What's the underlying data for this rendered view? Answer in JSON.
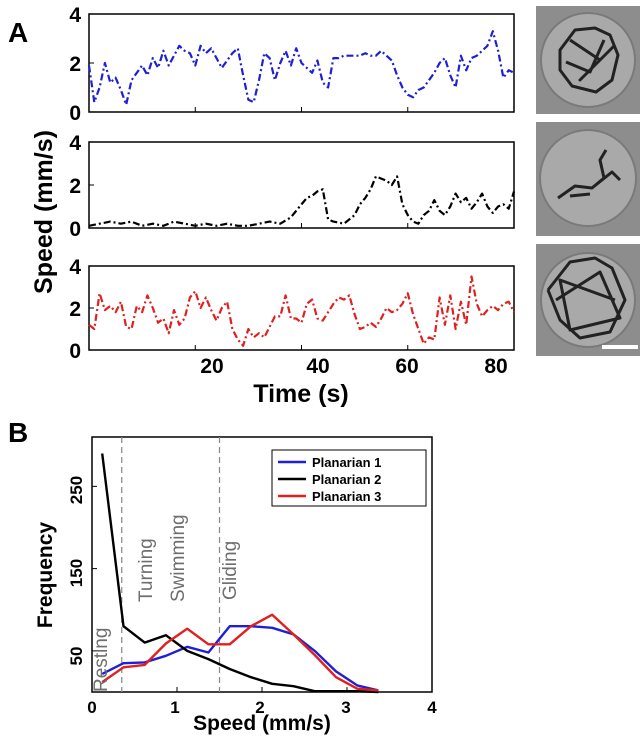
{
  "panel_a": {
    "letter": "A",
    "ylabel": "Speed (mm/s)",
    "xlabel": "Time (s)",
    "xticks": [
      "20",
      "40",
      "60",
      "80"
    ],
    "yticks": [
      "0",
      "2",
      "4"
    ]
  },
  "panel_b": {
    "letter": "B",
    "ylabel": "Frequency",
    "xlabel": "Speed (mm/s)",
    "xticks": [
      "0",
      "1",
      "2",
      "3",
      "4"
    ],
    "yticks": [
      "50",
      "150",
      "250"
    ],
    "regions": [
      "Resting",
      "Turning",
      "Swimming",
      "Gliding"
    ]
  },
  "chart_data": [
    {
      "type": "line",
      "xlabel": "Time (s)",
      "ylabel": "Speed (mm/s)",
      "xlim": [
        0,
        80
      ],
      "ylim": [
        0,
        4
      ],
      "color": "#1f1fd6",
      "x": [
        0,
        1,
        2,
        3,
        4,
        5,
        6,
        7,
        8,
        9,
        10,
        11,
        12,
        13,
        14,
        15,
        16,
        17,
        18,
        19,
        20,
        21,
        22,
        23,
        24,
        25,
        26,
        27,
        28,
        29,
        30,
        31,
        32,
        33,
        34,
        35,
        36,
        37,
        38,
        39,
        40,
        41,
        42,
        43,
        44,
        45,
        46,
        47,
        48,
        49,
        50,
        51,
        52,
        53,
        54,
        55,
        56,
        57,
        58,
        59,
        60,
        61,
        62,
        63,
        64,
        65,
        66,
        67,
        68,
        69,
        70,
        71,
        72,
        73,
        74,
        75,
        76,
        77,
        78,
        79,
        80
      ],
      "values": [
        1.9,
        0.4,
        1.0,
        2.0,
        1.2,
        1.4,
        0.9,
        0.3,
        1.3,
        1.6,
        1.9,
        1.5,
        2.2,
        1.8,
        2.5,
        1.9,
        2.3,
        2.7,
        2.5,
        2.4,
        1.9,
        2.7,
        2.4,
        2.6,
        2.2,
        1.8,
        2.1,
        2.4,
        2.6,
        1.5,
        0.5,
        0.4,
        1.3,
        2.4,
        2.2,
        1.3,
        2.0,
        2.5,
        1.9,
        2.6,
        2.0,
        1.8,
        1.6,
        2.1,
        1.2,
        1.0,
        2.2,
        2.2,
        2.3,
        2.3,
        2.3,
        2.3,
        2.4,
        2.3,
        2.3,
        2.5,
        2.3,
        2.1,
        1.5,
        1.0,
        0.7,
        0.6,
        0.9,
        1.0,
        1.3,
        1.6,
        2.0,
        2.2,
        1.5,
        1.0,
        2.3,
        1.7,
        2.2,
        2.3,
        2.5,
        2.7,
        3.3,
        2.5,
        1.4,
        1.7,
        1.6
      ]
    },
    {
      "type": "line",
      "xlabel": "Time (s)",
      "ylabel": "Speed (mm/s)",
      "xlim": [
        0,
        80
      ],
      "ylim": [
        0,
        4
      ],
      "color": "#000000",
      "x": [
        0,
        2,
        4,
        6,
        8,
        10,
        12,
        14,
        16,
        18,
        20,
        22,
        24,
        26,
        28,
        30,
        32,
        34,
        36,
        38,
        39,
        40,
        41,
        42,
        43,
        44,
        45,
        46,
        48,
        50,
        51,
        52,
        53,
        54,
        55,
        56,
        57,
        58,
        59,
        60,
        61,
        62,
        63,
        64,
        65,
        66,
        67,
        68,
        69,
        70,
        71,
        72,
        73,
        74,
        75,
        76,
        77,
        78,
        79,
        80
      ],
      "values": [
        0.1,
        0.2,
        0.3,
        0.2,
        0.3,
        0.1,
        0.2,
        0.1,
        0.3,
        0.2,
        0.1,
        0.2,
        0.1,
        0.2,
        0.1,
        0.1,
        0.2,
        0.3,
        0.2,
        0.5,
        0.8,
        1.1,
        1.4,
        1.5,
        1.7,
        1.8,
        0.4,
        0.3,
        0.2,
        0.6,
        1.1,
        1.4,
        1.8,
        2.4,
        2.3,
        2.2,
        2.0,
        2.4,
        1.1,
        0.6,
        0.3,
        0.2,
        0.6,
        0.8,
        1.3,
        0.8,
        0.6,
        1.0,
        1.6,
        1.2,
        1.4,
        0.9,
        1.2,
        1.6,
        1.0,
        0.7,
        1.0,
        1.1,
        0.9,
        1.7
      ]
    },
    {
      "type": "line",
      "xlabel": "Time (s)",
      "ylabel": "Speed (mm/s)",
      "xlim": [
        0,
        80
      ],
      "ylim": [
        0,
        4
      ],
      "color": "#e0201e",
      "x": [
        0,
        1,
        2,
        3,
        4,
        5,
        6,
        7,
        8,
        9,
        10,
        11,
        12,
        13,
        14,
        15,
        16,
        17,
        18,
        19,
        20,
        21,
        22,
        23,
        24,
        25,
        26,
        27,
        28,
        29,
        30,
        31,
        32,
        33,
        34,
        35,
        36,
        37,
        38,
        39,
        40,
        41,
        42,
        43,
        44,
        45,
        46,
        47,
        48,
        49,
        50,
        51,
        52,
        53,
        54,
        55,
        56,
        57,
        58,
        59,
        60,
        61,
        62,
        63,
        64,
        65,
        66,
        67,
        68,
        69,
        70,
        71,
        72,
        73,
        74,
        75,
        76,
        77,
        78,
        79,
        80
      ],
      "values": [
        1.2,
        1.0,
        2.7,
        1.9,
        2.1,
        1.8,
        2.3,
        1.1,
        1.0,
        2.1,
        1.8,
        2.6,
        2.0,
        1.3,
        1.5,
        0.8,
        1.9,
        1.2,
        1.5,
        2.5,
        2.8,
        2.0,
        2.5,
        1.9,
        1.4,
        2.0,
        2.3,
        1.0,
        0.5,
        0.2,
        1.0,
        0.6,
        0.8,
        0.6,
        1.1,
        1.6,
        1.6,
        2.6,
        1.5,
        1.5,
        1.3,
        2.2,
        2.4,
        1.5,
        1.4,
        1.8,
        2.2,
        2.5,
        2.4,
        2.6,
        1.7,
        1.0,
        1.1,
        1.3,
        1.1,
        1.5,
        2.0,
        1.8,
        1.9,
        2.2,
        2.7,
        1.7,
        1.0,
        0.3,
        0.6,
        0.5,
        2.5,
        1.2,
        2.6,
        1.0,
        2.3,
        1.2,
        3.5,
        2.2,
        1.6,
        1.9,
        2.1,
        1.9,
        2.2,
        2.3,
        1.8
      ]
    },
    {
      "type": "line",
      "xlabel": "Speed (mm/s)",
      "ylabel": "Frequency",
      "xlim": [
        0,
        4
      ],
      "ylim": [
        0,
        310
      ],
      "legend": "top-right",
      "vlines": [
        0.35,
        1.5
      ],
      "series": [
        {
          "name": "Planarian 1",
          "color": "#1f1fd6",
          "x": [
            0.12,
            0.37,
            0.62,
            0.87,
            1.12,
            1.37,
            1.62,
            1.87,
            2.12,
            2.37,
            2.62,
            2.87,
            3.12,
            3.37
          ],
          "values": [
            22,
            35,
            36,
            44,
            55,
            48,
            80,
            80,
            78,
            70,
            50,
            25,
            8,
            2
          ]
        },
        {
          "name": "Planarian 2",
          "color": "#000000",
          "x": [
            0.12,
            0.37,
            0.62,
            0.87,
            1.12,
            1.37,
            1.62,
            1.87,
            2.12,
            2.37,
            2.62,
            2.87,
            3.12,
            3.37
          ],
          "values": [
            290,
            80,
            60,
            69,
            50,
            40,
            28,
            18,
            10,
            7,
            1,
            1,
            1,
            0
          ]
        },
        {
          "name": "Planarian 3",
          "color": "#e0201e",
          "x": [
            0.12,
            0.37,
            0.62,
            0.87,
            1.12,
            1.37,
            1.62,
            1.87,
            2.12,
            2.37,
            2.62,
            2.87,
            3.12,
            3.37
          ],
          "values": [
            12,
            30,
            33,
            59,
            77,
            58,
            58,
            80,
            94,
            70,
            45,
            18,
            4,
            2
          ]
        }
      ]
    }
  ]
}
